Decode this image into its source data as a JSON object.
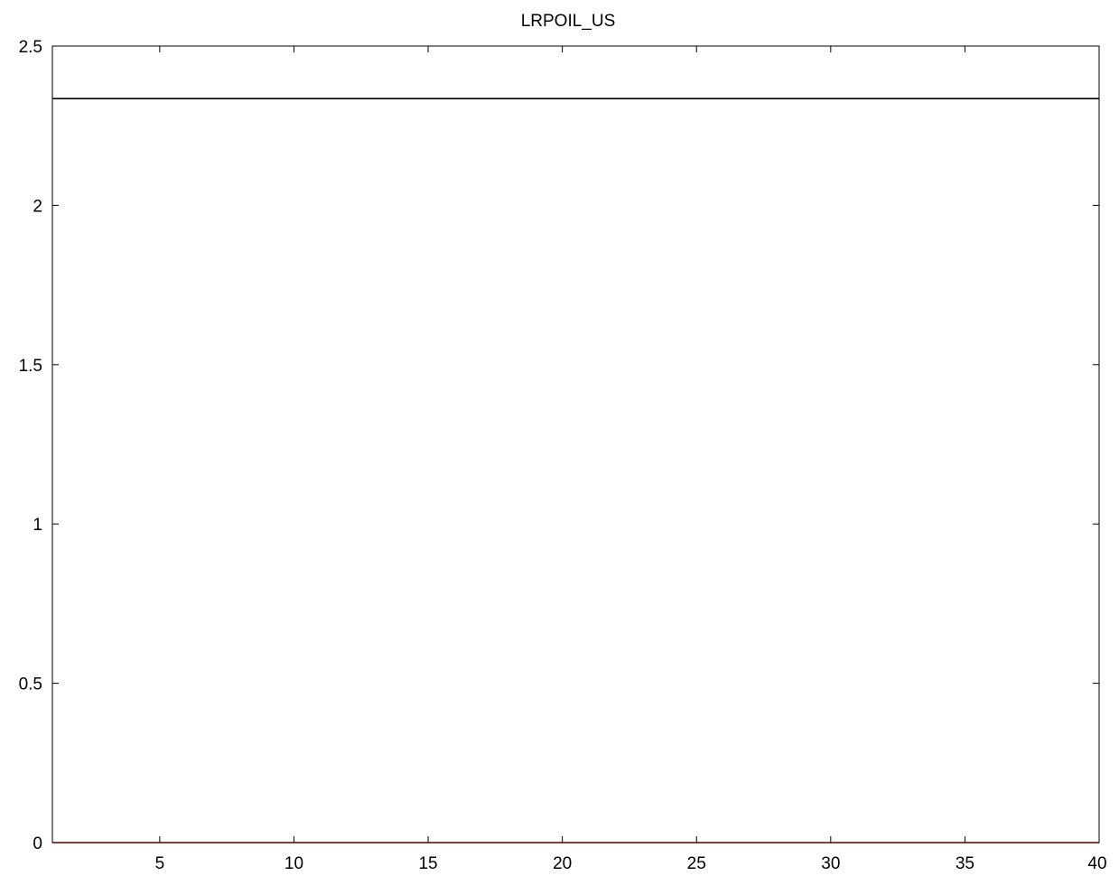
{
  "chart_data": {
    "type": "line",
    "title": "LRPOIL_US",
    "xlabel": "",
    "ylabel": "",
    "xlim": [
      1,
      40
    ],
    "ylim": [
      0,
      2.5
    ],
    "xticks": [
      5,
      10,
      15,
      20,
      25,
      30,
      35,
      40
    ],
    "yticks": [
      0,
      0.5,
      1,
      1.5,
      2,
      2.5
    ],
    "xtick_labels": [
      "5",
      "10",
      "15",
      "20",
      "25",
      "30",
      "35",
      "40"
    ],
    "ytick_labels": [
      "0",
      "0.5",
      "1",
      "1.5",
      "2",
      "2.5"
    ],
    "grid": false,
    "series": [
      {
        "color": "#000000",
        "x": [
          1,
          40
        ],
        "values": [
          2.335,
          2.335
        ]
      },
      {
        "color": "#ff0000",
        "x": [
          1,
          40
        ],
        "values": [
          0,
          0
        ]
      }
    ]
  }
}
